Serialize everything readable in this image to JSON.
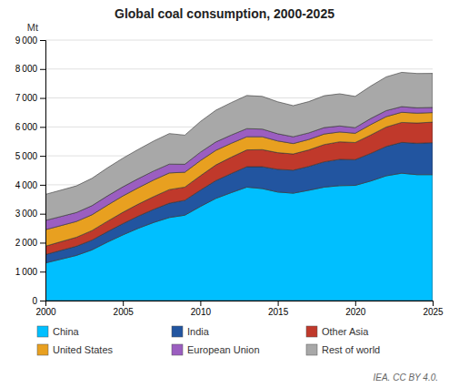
{
  "chart_data": {
    "type": "area",
    "stacked": true,
    "title": "Global coal consumption, 2000-2025",
    "y_label": "Mt",
    "annotations": [
      "IEA. CC BY 4.0."
    ],
    "x": [
      2000,
      2001,
      2002,
      2003,
      2004,
      2005,
      2006,
      2007,
      2008,
      2009,
      2010,
      2011,
      2012,
      2013,
      2014,
      2015,
      2016,
      2017,
      2018,
      2019,
      2020,
      2021,
      2022,
      2023,
      2024,
      2025
    ],
    "series": [
      {
        "name": "China",
        "color": "#00BFFF",
        "values": [
          1300,
          1430,
          1560,
          1750,
          2020,
          2270,
          2500,
          2700,
          2870,
          2950,
          3250,
          3530,
          3730,
          3920,
          3870,
          3750,
          3710,
          3810,
          3920,
          3970,
          3980,
          4130,
          4310,
          4400,
          4350,
          4350
        ]
      },
      {
        "name": "India",
        "color": "#2255A0",
        "values": [
          290,
          305,
          318,
          338,
          360,
          390,
          420,
          455,
          495,
          515,
          565,
          615,
          660,
          705,
          755,
          785,
          795,
          825,
          875,
          910,
          890,
          955,
          1015,
          1065,
          1085,
          1105
        ]
      },
      {
        "name": "Other Asia",
        "color": "#C0392B",
        "values": [
          290,
          300,
          310,
          330,
          360,
          390,
          415,
          440,
          470,
          455,
          495,
          540,
          565,
          580,
          590,
          575,
          560,
          570,
          595,
          605,
          590,
          635,
          670,
          690,
          700,
          710
        ]
      },
      {
        "name": "United States",
        "color": "#E8A020",
        "values": [
          570,
          555,
          545,
          545,
          555,
          565,
          565,
          575,
          575,
          515,
          525,
          505,
          480,
          455,
          445,
          405,
          360,
          360,
          365,
          340,
          320,
          360,
          360,
          350,
          340,
          330
        ]
      },
      {
        "name": "European Union",
        "color": "#9B5EC0",
        "values": [
          320,
          315,
          310,
          315,
          320,
          315,
          315,
          310,
          305,
          275,
          290,
          290,
          285,
          280,
          265,
          248,
          235,
          228,
          222,
          208,
          195,
          210,
          208,
          195,
          185,
          178
        ]
      },
      {
        "name": "Rest of world",
        "color": "#A8A8A8",
        "values": [
          900,
          910,
          920,
          945,
          970,
          990,
          1010,
          1035,
          1055,
          1005,
          1060,
          1095,
          1120,
          1145,
          1130,
          1105,
          1075,
          1080,
          1100,
          1110,
          1080,
          1120,
          1165,
          1185,
          1185,
          1175
        ]
      }
    ],
    "xlim": [
      2000,
      2025
    ],
    "xticks": [
      2000,
      2005,
      2010,
      2015,
      2020,
      2025
    ],
    "ylim": [
      0,
      9000
    ],
    "yticks": [
      0,
      {
        "value": 1000,
        "label": "1 000"
      },
      {
        "value": 2000,
        "label": "2 000"
      },
      {
        "value": 3000,
        "label": "3 000"
      },
      {
        "value": 4000,
        "label": "4 000"
      },
      {
        "value": 5000,
        "label": "5 000"
      },
      {
        "value": 6000,
        "label": "6 000"
      },
      {
        "value": 7000,
        "label": "7 000"
      },
      {
        "value": 8000,
        "label": "8 000"
      },
      {
        "value": 9000,
        "label": "9 000"
      }
    ],
    "grid": true,
    "legend": "bottom"
  }
}
